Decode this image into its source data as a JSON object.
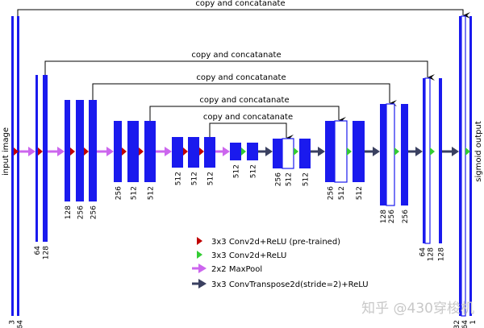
{
  "side_labels": {
    "input": "input image",
    "output": "sigmoid output"
  },
  "copy_label": "copy and concatanate",
  "channels": {
    "enc1": [
      "3",
      "64"
    ],
    "enc2": [
      "64",
      "128"
    ],
    "enc3": [
      "128",
      "256",
      "256"
    ],
    "enc4": [
      "256",
      "512",
      "512"
    ],
    "enc5": [
      "512",
      "512",
      "512"
    ],
    "bottom": [
      "512",
      "512"
    ],
    "dec1": [
      "256",
      "512",
      "512"
    ],
    "dec2": [
      "256",
      "512",
      "512"
    ],
    "dec3": [
      "128",
      "256",
      "256"
    ],
    "dec4": [
      "64",
      "128",
      "128"
    ],
    "dec5": [
      "32",
      "64",
      "1"
    ]
  },
  "legend": [
    {
      "label": "3x3 Conv2d+ReLU (pre-trained)",
      "color": "#c00000",
      "shape": "triangle"
    },
    {
      "label": "3x3 Conv2d+ReLU",
      "color": "#33cc33",
      "shape": "triangle"
    },
    {
      "label": "2x2 MaxPool",
      "color": "#cc66ee",
      "shape": "arrow"
    },
    {
      "label": "3x3 ConvTranspose2d(stride=2)+ReLU",
      "color": "#3a4060",
      "shape": "arrow"
    }
  ],
  "colors": {
    "feature_map": "#1a1aee",
    "concat_map": "#ffffff"
  },
  "watermark": "知乎 @430穿梭机"
}
